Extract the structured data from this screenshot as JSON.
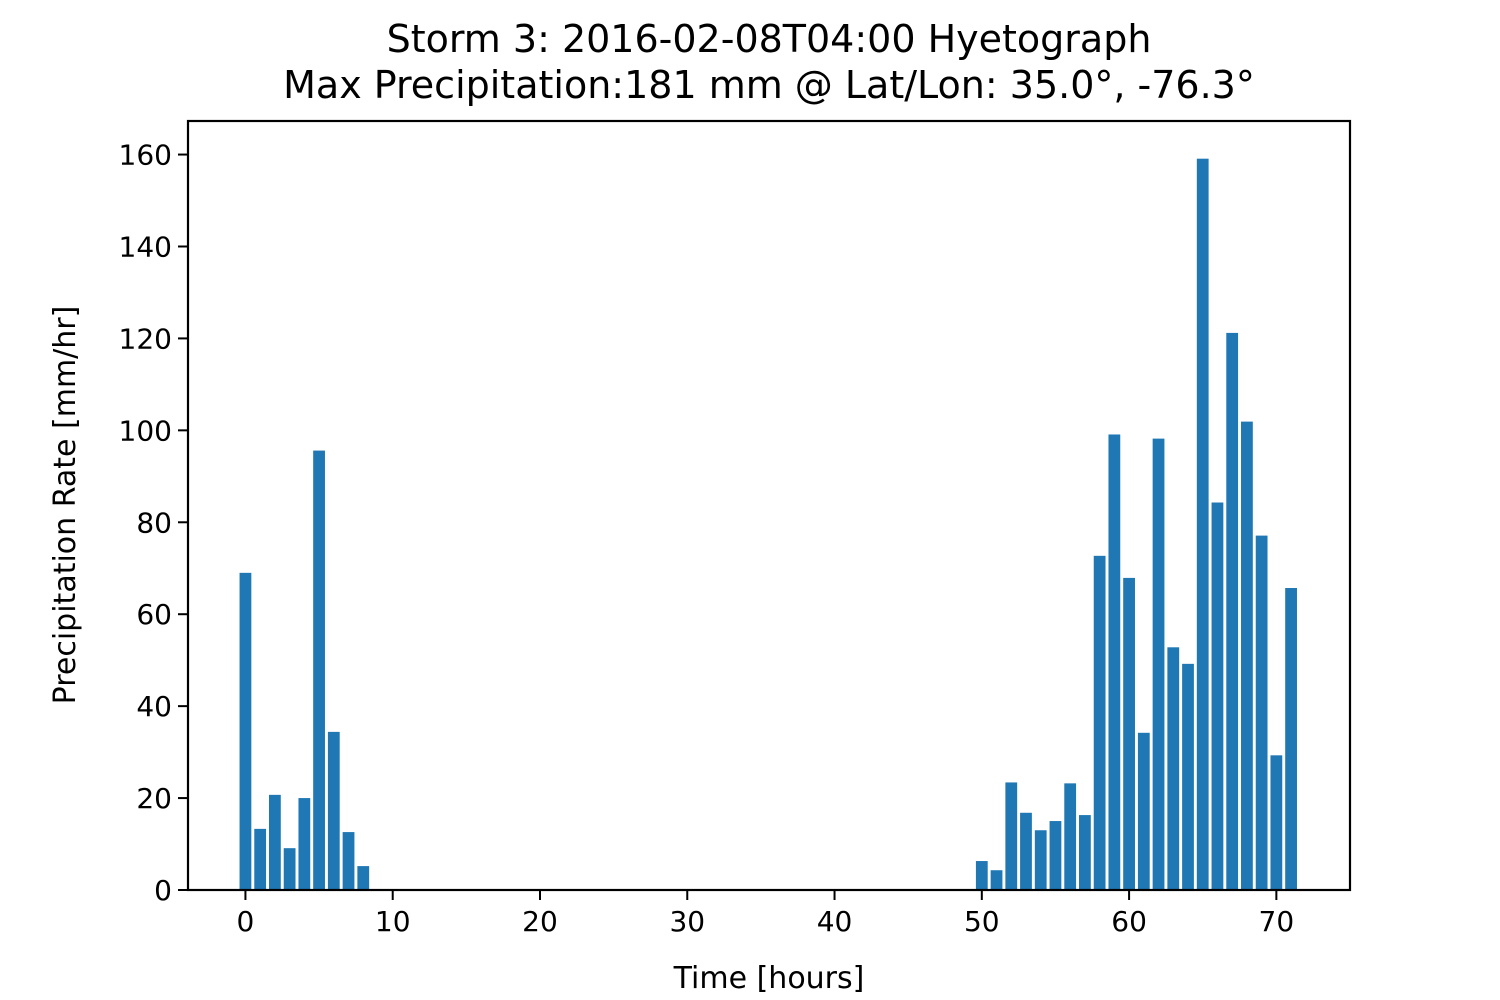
{
  "chart_data": {
    "type": "bar",
    "title": "Storm 3: 2016-02-08T04:00 Hyetograph",
    "subtitle": "Max Precipitation:181 mm @ Lat/Lon:  35.0°, -76.3°",
    "xlabel": "Time [hours]",
    "ylabel": "Precipitation Rate [mm/hr]",
    "xlim": [
      -3.9,
      75.0
    ],
    "ylim": [
      0,
      167.3
    ],
    "xticks": [
      0,
      10,
      20,
      30,
      40,
      50,
      60,
      70
    ],
    "yticks": [
      0,
      20,
      40,
      60,
      80,
      100,
      120,
      140,
      160
    ],
    "bar_color": "#1f77b4",
    "grid": false,
    "x": [
      0,
      1,
      2,
      3,
      4,
      5,
      6,
      7,
      8,
      50,
      51,
      52,
      53,
      54,
      55,
      56,
      57,
      58,
      59,
      60,
      61,
      62,
      63,
      64,
      65,
      66,
      67,
      68,
      69,
      70,
      71
    ],
    "values": [
      69.0,
      13.3,
      20.7,
      9.1,
      20.0,
      95.6,
      34.4,
      12.6,
      5.2,
      6.3,
      4.3,
      23.4,
      16.8,
      13.0,
      15.0,
      23.2,
      16.3,
      72.7,
      99.1,
      67.9,
      34.2,
      98.2,
      52.8,
      49.2,
      159.1,
      84.3,
      121.2,
      101.9,
      77.1,
      29.3,
      65.7
    ]
  }
}
